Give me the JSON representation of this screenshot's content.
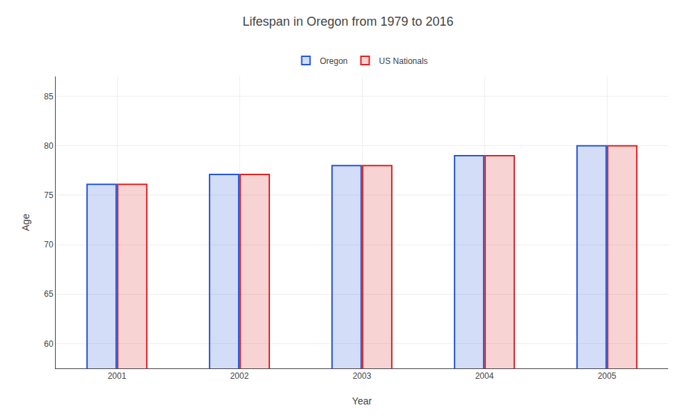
{
  "chart_data": {
    "type": "bar",
    "title": "Lifespan in Oregon from 1979 to 2016",
    "xlabel": "Year",
    "ylabel": "Age",
    "categories": [
      "2001",
      "2002",
      "2003",
      "2004",
      "2005"
    ],
    "series": [
      {
        "name": "Oregon",
        "color": "#2255dd",
        "values": [
          76.1,
          77.1,
          78.0,
          79.0,
          80.0
        ]
      },
      {
        "name": "US Nationals",
        "color": "#dd2222",
        "values": [
          76.1,
          77.1,
          78.0,
          79.0,
          80.0
        ]
      }
    ],
    "ylim": [
      57.5,
      87
    ],
    "yticks": [
      60,
      65,
      70,
      75,
      80,
      85
    ],
    "grid": true,
    "legend": "top"
  }
}
